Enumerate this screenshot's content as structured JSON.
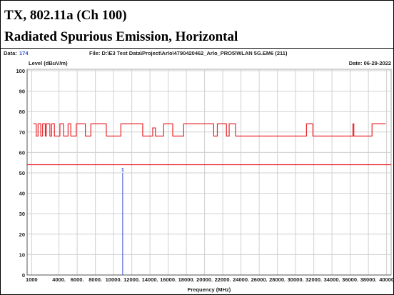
{
  "chart_data": {
    "type": "line",
    "title": "TX, 802.11a (Ch 100)",
    "subtitle": "Radiated Spurious Emission, Horizontal",
    "data_label": "Data:",
    "data_number": "174",
    "file": "File: D:\\E3 Test Data\\Project\\Arlo\\4790420462_Arlo_PRO5\\WLAN 5G.EM6  (211)",
    "date": "Date: 06-29-2022",
    "ylabel": "Level (dBuV/m)",
    "xlabel": "Frequency (MHz)",
    "xlim": [
      500,
      40500
    ],
    "ylim": [
      0,
      100
    ],
    "xticks": [
      {
        "value": 1000,
        "label": "1000"
      },
      {
        "value": 4000,
        "label": "4000."
      },
      {
        "value": 6000,
        "label": "6000."
      },
      {
        "value": 8000,
        "label": "8000."
      },
      {
        "value": 10000,
        "label": "10000."
      },
      {
        "value": 12000,
        "label": "12000."
      },
      {
        "value": 14000,
        "label": "14000."
      },
      {
        "value": 16000,
        "label": "16000."
      },
      {
        "value": 18000,
        "label": "18000."
      },
      {
        "value": 20000,
        "label": "20000."
      },
      {
        "value": 22000,
        "label": "22000."
      },
      {
        "value": 24000,
        "label": "24000."
      },
      {
        "value": 26000,
        "label": "26000."
      },
      {
        "value": 28000,
        "label": "28000."
      },
      {
        "value": 30000,
        "label": "30000."
      },
      {
        "value": 32000,
        "label": "32000."
      },
      {
        "value": 34000,
        "label": "34000."
      },
      {
        "value": 36000,
        "label": "36000."
      },
      {
        "value": 38000,
        "label": "38000."
      },
      40000
    ],
    "yticks": [
      0,
      10,
      20,
      30,
      40,
      50,
      60,
      70,
      80,
      90,
      100
    ],
    "grid": true,
    "series": [
      {
        "color": "#e8262a",
        "x": [
          1200,
          1500,
          1500,
          1700,
          1700,
          2000,
          2000,
          2200,
          2200,
          2500,
          2500,
          2600,
          2600,
          3000,
          3000,
          3200,
          3200,
          3500,
          3500,
          4100,
          4100,
          4500,
          4500,
          5000,
          5000,
          5300,
          5300,
          5900,
          5900,
          6900,
          6900,
          7500,
          7500,
          9200,
          9200,
          10800,
          10800,
          13200,
          13200,
          14300,
          14300,
          14600,
          14600,
          15500,
          15500,
          16500,
          16500,
          17700,
          17700,
          21000,
          21000,
          21400,
          21400,
          22400,
          22400,
          22700,
          22700,
          23400,
          23400,
          31200,
          31200,
          31900,
          31900,
          36300,
          36300,
          36400,
          36400,
          38400,
          38400,
          39900
        ],
        "values": [
          74,
          74,
          68,
          68,
          74,
          74,
          68,
          68,
          74,
          74,
          68,
          68,
          74,
          74,
          68,
          68,
          74,
          74,
          68,
          68,
          74,
          74,
          68,
          68,
          74,
          74,
          68,
          68,
          74,
          74,
          68,
          68,
          74,
          74,
          68,
          68,
          74,
          74,
          68,
          68,
          72,
          72,
          68,
          68,
          74,
          74,
          68,
          68,
          74,
          74,
          68,
          68,
          74,
          74,
          68,
          68,
          74,
          74,
          68,
          68,
          74,
          74,
          68,
          68,
          74,
          74,
          68,
          68,
          74,
          74
        ]
      },
      {
        "color": "#e8262a",
        "x": [
          500,
          40500
        ],
        "values": [
          54,
          54
        ]
      }
    ],
    "markers": [
      {
        "label": "1",
        "x": 11000,
        "value": 50,
        "color": "#3b4fe0"
      }
    ]
  }
}
